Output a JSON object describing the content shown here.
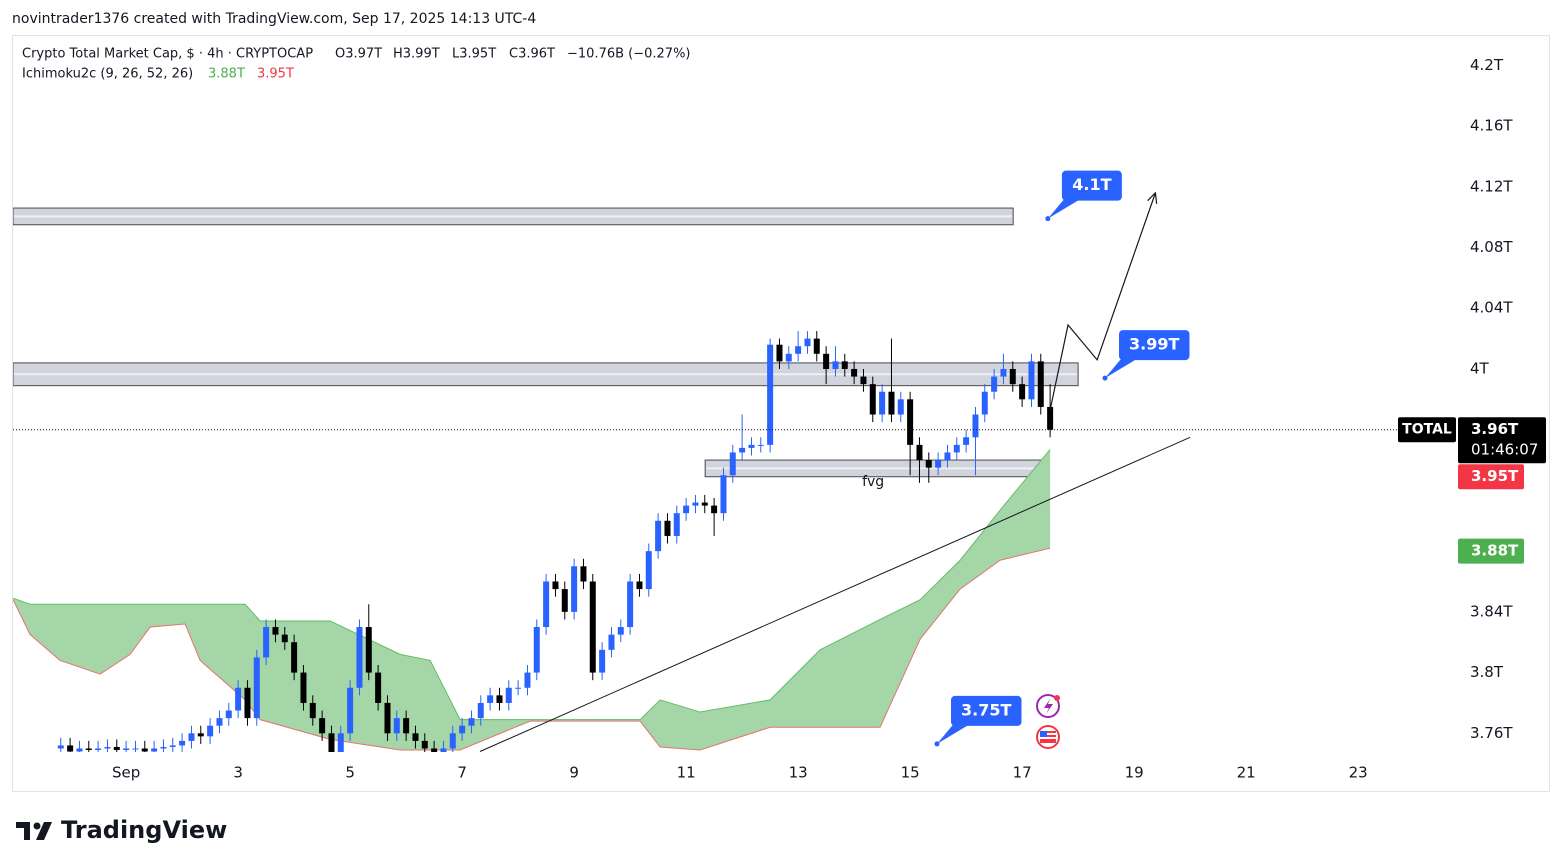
{
  "header": "novintrader1376 created with TradingView.com, Sep 17, 2025 14:13 UTC-4",
  "chart_data": {
    "type": "candlestick",
    "legend": {
      "title": "Crypto Total Market Cap, $ · 4h · CRYPTOCAP",
      "open": "O3.97T",
      "high": "H3.99T",
      "low": "L3.95T",
      "close": "C3.96T",
      "change": "−10.76B (−0.27%)"
    },
    "indicator": {
      "name": "Ichimoku2c (9, 26, 52, 26)",
      "value_a": "3.88T",
      "value_b": "3.95T"
    },
    "xlim": [
      -1.02,
      24.73
    ],
    "ylim": [
      3.749,
      4.22
    ],
    "xticks": [
      {
        "value": 1,
        "label": "Sep"
      },
      3,
      5,
      7,
      9,
      11,
      13,
      15,
      17,
      19,
      21,
      23
    ],
    "yticks": [
      {
        "value": 4.2,
        "label": "4.2T"
      },
      {
        "value": 4.16,
        "label": "4.16T"
      },
      {
        "value": 4.12,
        "label": "4.12T"
      },
      {
        "value": 4.08,
        "label": "4.08T"
      },
      {
        "value": 4.04,
        "label": "4.04T"
      },
      {
        "value": 4,
        "label": "4T"
      },
      {
        "value": 3.84,
        "label": "3.84T"
      },
      {
        "value": 3.8,
        "label": "3.8T"
      },
      {
        "value": 3.76,
        "label": "3.76T"
      }
    ],
    "up_color": "#2962ff",
    "down_color": "#000000",
    "x": [
      -0.167,
      0,
      0.167,
      0.333,
      0.5,
      0.667,
      0.833,
      1,
      1.167,
      1.333,
      1.5,
      1.667,
      1.833,
      2,
      2.167,
      2.333,
      2.5,
      2.667,
      2.833,
      3,
      3.167,
      3.333,
      3.5,
      3.667,
      3.833,
      4,
      4.167,
      4.333,
      4.5,
      4.667,
      4.833,
      5,
      5.167,
      5.333,
      5.5,
      5.667,
      5.833,
      6,
      6.167,
      6.333,
      6.5,
      6.667,
      6.833,
      7,
      7.167,
      7.333,
      7.5,
      7.667,
      7.833,
      8,
      8.167,
      8.333,
      8.5,
      8.667,
      8.833,
      9,
      9.167,
      9.333,
      9.5,
      9.667,
      9.833,
      10,
      10.167,
      10.333,
      10.5,
      10.667,
      10.833,
      11,
      11.167,
      11.333,
      11.5,
      11.667,
      11.833,
      12,
      12.167,
      12.333,
      12.5,
      12.667,
      12.833,
      13,
      13.167,
      13.333,
      13.5,
      13.667,
      13.833,
      14,
      14.167,
      14.333,
      14.5,
      14.667,
      14.833,
      15,
      15.167,
      15.333,
      15.5,
      15.667,
      15.833,
      16,
      16.167,
      16.333,
      16.5,
      16.667,
      16.833,
      17,
      17.167,
      17.333,
      17.5
    ],
    "open": [
      3.75,
      3.752,
      3.748,
      3.75,
      3.749,
      3.75,
      3.751,
      3.749,
      3.75,
      3.75,
      3.748,
      3.75,
      3.751,
      3.752,
      3.755,
      3.76,
      3.758,
      3.765,
      3.77,
      3.775,
      3.79,
      3.77,
      3.81,
      3.83,
      3.825,
      3.82,
      3.8,
      3.78,
      3.77,
      3.76,
      3.745,
      3.76,
      3.79,
      3.83,
      3.8,
      3.78,
      3.76,
      3.77,
      3.76,
      3.755,
      3.75,
      3.745,
      3.75,
      3.76,
      3.765,
      3.77,
      3.78,
      3.785,
      3.78,
      3.79,
      3.79,
      3.8,
      3.83,
      3.86,
      3.855,
      3.84,
      3.87,
      3.86,
      3.8,
      3.815,
      3.825,
      3.83,
      3.86,
      3.855,
      3.88,
      3.9,
      3.89,
      3.905,
      3.91,
      3.912,
      3.91,
      3.905,
      3.93,
      3.945,
      3.948,
      3.95,
      3.95,
      4.016,
      4.005,
      4.01,
      4.015,
      4.02,
      4.01,
      4,
      4.005,
      4,
      3.995,
      3.99,
      3.97,
      3.985,
      3.97,
      3.98,
      3.95,
      3.94,
      3.935,
      3.94,
      3.945,
      3.95,
      3.955,
      3.97,
      3.985,
      3.995,
      4,
      3.99,
      3.98,
      4.005,
      3.975
    ],
    "high": [
      3.757,
      3.757,
      3.755,
      3.755,
      3.755,
      3.756,
      3.756,
      3.755,
      3.755,
      3.755,
      3.755,
      3.756,
      3.757,
      3.76,
      3.765,
      3.765,
      3.77,
      3.775,
      3.78,
      3.795,
      3.795,
      3.815,
      3.835,
      3.835,
      3.83,
      3.825,
      3.805,
      3.785,
      3.775,
      3.765,
      3.765,
      3.795,
      3.835,
      3.845,
      3.805,
      3.785,
      3.775,
      3.775,
      3.765,
      3.76,
      3.755,
      3.755,
      3.765,
      3.77,
      3.775,
      3.785,
      3.79,
      3.79,
      3.795,
      3.795,
      3.805,
      3.835,
      3.865,
      3.865,
      3.86,
      3.875,
      3.875,
      3.865,
      3.82,
      3.83,
      3.835,
      3.865,
      3.865,
      3.885,
      3.905,
      3.905,
      3.91,
      3.915,
      3.917,
      3.917,
      3.915,
      3.935,
      3.95,
      3.97,
      3.955,
      3.955,
      4.02,
      4.02,
      4.015,
      4.025,
      4.025,
      4.025,
      4.015,
      4.015,
      4.01,
      4.005,
      4,
      3.995,
      3.99,
      4.02,
      3.985,
      3.985,
      3.955,
      3.945,
      3.945,
      3.95,
      3.955,
      3.96,
      3.975,
      3.99,
      4,
      4.01,
      4.005,
      3.995,
      4.01,
      4.01,
      3.99
    ],
    "low": [
      3.745,
      3.743,
      3.743,
      3.744,
      3.744,
      3.745,
      3.744,
      3.744,
      3.745,
      3.743,
      3.743,
      3.745,
      3.746,
      3.747,
      3.75,
      3.753,
      3.753,
      3.76,
      3.765,
      3.77,
      3.765,
      3.765,
      3.805,
      3.82,
      3.815,
      3.795,
      3.775,
      3.765,
      3.755,
      3.74,
      3.74,
      3.755,
      3.785,
      3.795,
      3.775,
      3.755,
      3.755,
      3.755,
      3.75,
      3.745,
      3.74,
      3.74,
      3.745,
      3.755,
      3.76,
      3.765,
      3.775,
      3.775,
      3.775,
      3.785,
      3.785,
      3.795,
      3.825,
      3.85,
      3.835,
      3.835,
      3.855,
      3.795,
      3.795,
      3.81,
      3.82,
      3.825,
      3.85,
      3.85,
      3.875,
      3.885,
      3.885,
      3.9,
      3.905,
      3.905,
      3.89,
      3.9,
      3.925,
      3.94,
      3.943,
      3.945,
      3.945,
      4,
      4,
      4.005,
      4.01,
      4.005,
      3.99,
      3.995,
      3.995,
      3.99,
      3.985,
      3.965,
      3.965,
      3.965,
      3.965,
      3.93,
      3.925,
      3.925,
      3.93,
      3.935,
      3.94,
      3.945,
      3.93,
      3.965,
      3.98,
      3.99,
      3.985,
      3.975,
      3.975,
      3.97,
      3.955
    ],
    "close": [
      3.752,
      3.748,
      3.75,
      3.749,
      3.75,
      3.751,
      3.749,
      3.75,
      3.75,
      3.748,
      3.75,
      3.751,
      3.752,
      3.755,
      3.76,
      3.758,
      3.765,
      3.77,
      3.775,
      3.79,
      3.77,
      3.81,
      3.83,
      3.825,
      3.82,
      3.8,
      3.78,
      3.77,
      3.76,
      3.745,
      3.76,
      3.79,
      3.83,
      3.8,
      3.78,
      3.76,
      3.77,
      3.76,
      3.755,
      3.75,
      3.745,
      3.75,
      3.76,
      3.765,
      3.77,
      3.78,
      3.785,
      3.78,
      3.79,
      3.79,
      3.8,
      3.83,
      3.86,
      3.855,
      3.84,
      3.87,
      3.86,
      3.8,
      3.815,
      3.825,
      3.83,
      3.86,
      3.855,
      3.88,
      3.9,
      3.89,
      3.905,
      3.91,
      3.912,
      3.91,
      3.905,
      3.93,
      3.945,
      3.948,
      3.95,
      3.95,
      4.016,
      4.005,
      4.01,
      4.015,
      4.02,
      4.01,
      4,
      4.005,
      4,
      3.995,
      3.99,
      3.97,
      3.985,
      3.97,
      3.98,
      3.95,
      3.94,
      3.935,
      3.94,
      3.945,
      3.95,
      3.955,
      3.97,
      3.985,
      3.995,
      4,
      3.99,
      3.98,
      4.005,
      3.975,
      3.96
    ],
    "ichimoku_cloud": {
      "color": "#a5d6a7",
      "span_a_color": "#66bb6a",
      "span_b_color": "#e57373",
      "x": [
        -1.018,
        -0.714,
        -0.179,
        0.536,
        1.071,
        1.429,
        2.054,
        2.321,
        3.125,
        3.393,
        4.643,
        5.893,
        6.429,
        6.964,
        8.214,
        10.179,
        10.536,
        11.25,
        12.5,
        13.393,
        14.464,
        15.179,
        15.893,
        16.607,
        17.5
      ],
      "span_a": [
        3.849,
        3.845,
        3.845,
        3.845,
        3.845,
        3.845,
        3.845,
        3.845,
        3.845,
        3.834,
        3.834,
        3.812,
        3.808,
        3.769,
        3.769,
        3.769,
        3.782,
        3.774,
        3.782,
        3.815,
        3.835,
        3.848,
        3.874,
        3.907,
        3.947
      ],
      "span_b": [
        3.848,
        3.825,
        3.808,
        3.799,
        3.812,
        3.83,
        3.832,
        3.808,
        3.782,
        3.769,
        3.756,
        3.749,
        3.749,
        3.749,
        3.768,
        3.768,
        3.751,
        3.749,
        3.764,
        3.764,
        3.764,
        3.822,
        3.855,
        3.874,
        3.882
      ]
    },
    "zones": [
      {
        "x": [
          -1.02,
          16.84
        ],
        "y": [
          4.095,
          4.106
        ]
      },
      {
        "x": [
          -1.02,
          18.0
        ],
        "y": [
          3.989,
          4.004
        ]
      },
      {
        "x": [
          11.34,
          17.34
        ],
        "y": [
          3.929,
          3.94
        ],
        "label": "fvg"
      }
    ],
    "trendline": {
      "x": [
        7.32,
        20.0
      ],
      "y": [
        3.748,
        3.955
      ]
    },
    "projection": {
      "x": [
        17.5,
        17.82,
        18.34,
        19.38
      ],
      "y": [
        3.973,
        4.029,
        4.006,
        4.116
      ]
    },
    "annotations": [
      {
        "text": "4.1T",
        "x": 17.46,
        "y": 4.099
      },
      {
        "text": "3.99T",
        "x": 18.48,
        "y": 3.994
      },
      {
        "text": "3.75T",
        "x": 15.48,
        "y": 3.753
      }
    ],
    "price_labels": [
      {
        "symbol": "TOTAL",
        "value": 3.96,
        "label": "3.96T",
        "countdown": "01:46:07",
        "color": "#000000"
      },
      {
        "value": 3.95,
        "label": "3.95T",
        "color": "#f23645"
      },
      {
        "value": 3.88,
        "label": "3.88T",
        "color": "#4caf50"
      }
    ]
  },
  "footer": {
    "brand": "TradingView"
  }
}
